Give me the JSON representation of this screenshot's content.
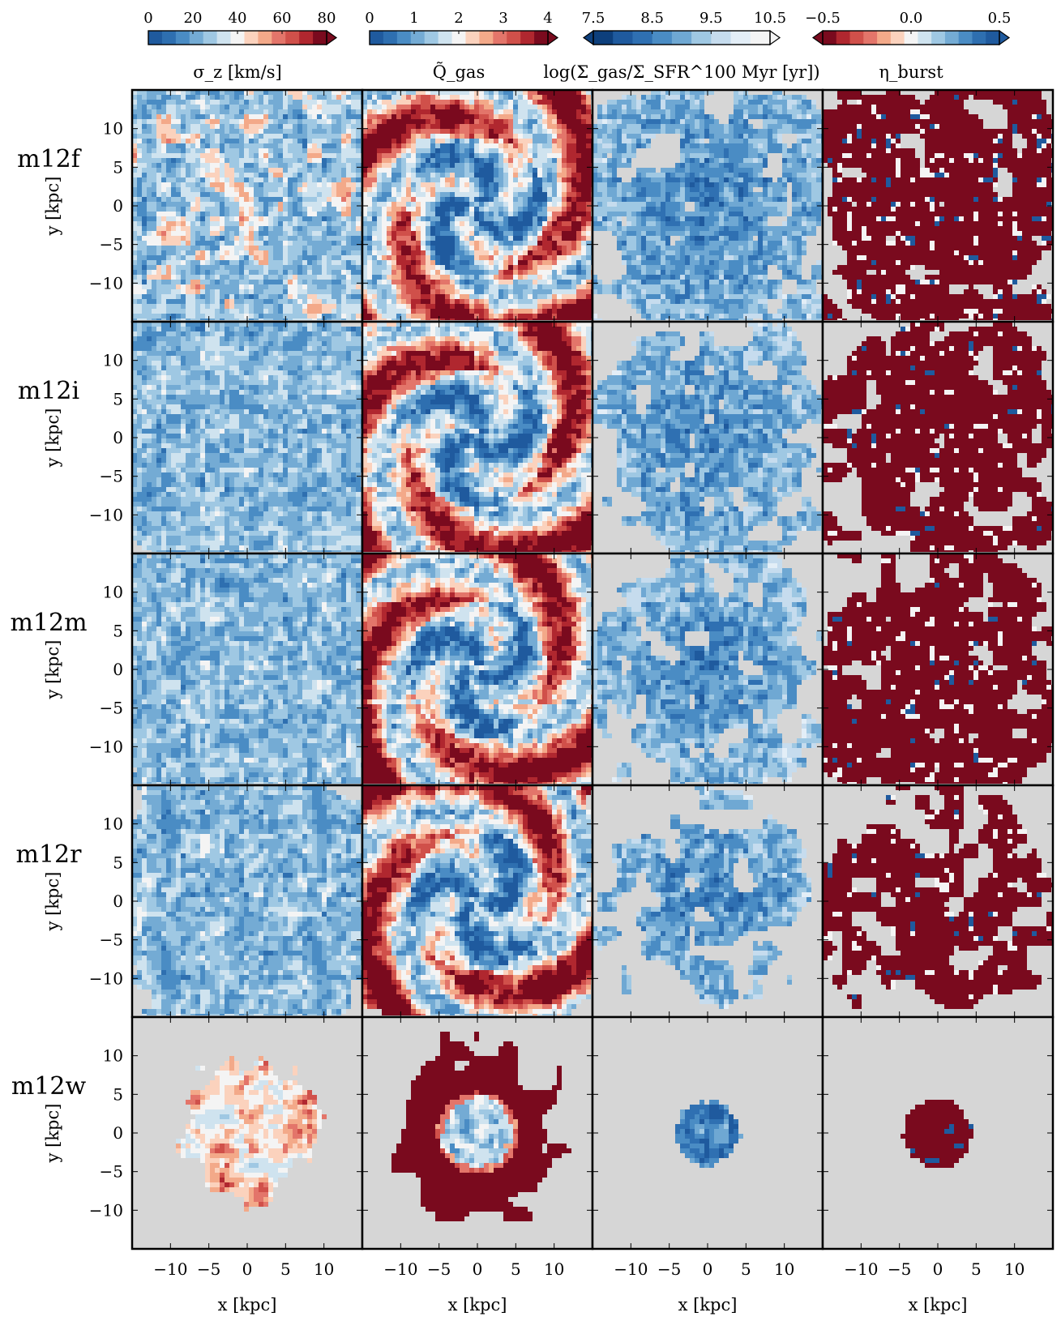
{
  "chart_data": {
    "type": "heatmap",
    "grid": false,
    "rows": [
      "m12f",
      "m12i",
      "m12m",
      "m12r",
      "m12w"
    ],
    "columns": [
      {
        "colorbar_label": "σ_z [km/s]",
        "ticks": [
          "0",
          "20",
          "40",
          "60",
          "80"
        ],
        "range": [
          0,
          80
        ],
        "colormap": "RdBu_r",
        "extend": "max"
      },
      {
        "colorbar_label": "Q̃_gas",
        "ticks": [
          "0",
          "1",
          "2",
          "3",
          "4"
        ],
        "range": [
          0,
          4
        ],
        "colormap": "RdBu_r",
        "extend": "max"
      },
      {
        "colorbar_label": "log(Σ_gas/Σ_SFR^100 Myr [yr])",
        "ticks": [
          "7.5",
          "8.5",
          "9.5",
          "10.5"
        ],
        "range": [
          7.5,
          10.5
        ],
        "colormap": "Blues_r",
        "extend": "both"
      },
      {
        "colorbar_label": "η_burst",
        "ticks": [
          "−0.5",
          "0.0",
          "0.5"
        ],
        "range": [
          -0.5,
          0.5
        ],
        "colormap": "RdBu",
        "extend": "both"
      }
    ],
    "xlabel": "x [kpc]",
    "ylabel": "y [kpc]",
    "xticks": [
      "−10",
      "−5",
      "0",
      "5",
      "10"
    ],
    "yticks": [
      "10",
      "5",
      "0",
      "−5",
      "−10"
    ],
    "xlim": [
      -15,
      15
    ],
    "ylim": [
      -15,
      15
    ],
    "background_color": "#d6d6d6",
    "colors": {
      "blue_dark": "#1f5a9e",
      "blue_mid": "#4a8cc4",
      "blue_light": "#9fc8e3",
      "white": "#f4f4f4",
      "red_light": "#f3a989",
      "red_mid": "#d0504a",
      "red_dark": "#7a0a1e"
    }
  }
}
